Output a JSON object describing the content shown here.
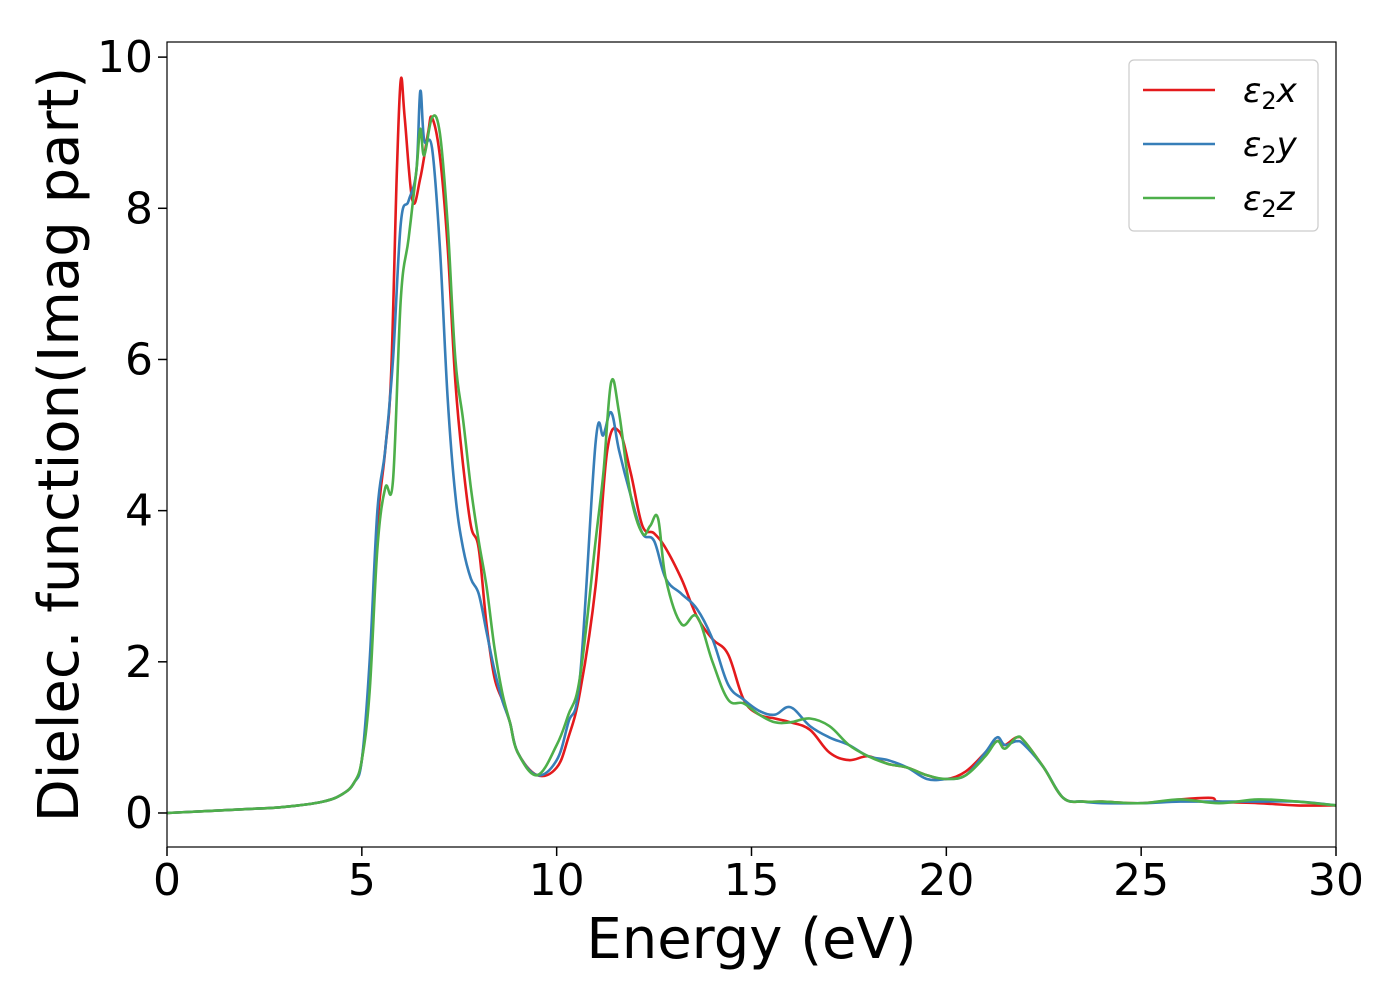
{
  "chart_data": {
    "type": "line",
    "title": "",
    "xlabel": "Energy (eV)",
    "ylabel": "Dielec. function(Imag part)",
    "xlim": [
      0,
      30
    ],
    "ylim": [
      -0.45,
      10.2
    ],
    "xticks": [
      0,
      5,
      10,
      15,
      20,
      25,
      30
    ],
    "yticks": [
      0,
      2,
      4,
      6,
      8,
      10
    ],
    "grid": false,
    "legend": "top-right",
    "series": [
      {
        "name": "ε₂x",
        "label_base": "ε",
        "label_sub": "2",
        "label_axis": "x",
        "color": "#e41a1c",
        "x": [
          0,
          2,
          3,
          4,
          4.5,
          4.8,
          5.0,
          5.2,
          5.4,
          5.6,
          5.75,
          5.9,
          6.0,
          6.1,
          6.3,
          6.5,
          6.7,
          6.8,
          7.0,
          7.2,
          7.4,
          7.6,
          7.8,
          8.0,
          8.2,
          8.4,
          8.6,
          8.8,
          9.0,
          9.5,
          10.0,
          10.3,
          10.6,
          11.0,
          11.3,
          11.6,
          11.9,
          12.2,
          12.5,
          12.8,
          13.2,
          13.6,
          14.0,
          14.4,
          14.8,
          15.2,
          15.6,
          16.0,
          16.5,
          17.0,
          17.5,
          18.0,
          18.5,
          19.0,
          19.5,
          20.0,
          20.5,
          21.0,
          21.3,
          21.5,
          21.8,
          22.0,
          22.5,
          23.0,
          23.5,
          24.0,
          25.0,
          26.0,
          26.8,
          27.0,
          28.0,
          29.0,
          30.0
        ],
        "y": [
          0,
          0.05,
          0.08,
          0.15,
          0.25,
          0.4,
          0.7,
          1.8,
          3.8,
          4.8,
          5.8,
          8.5,
          9.7,
          9.2,
          8.1,
          8.4,
          9.0,
          9.2,
          8.7,
          7.5,
          5.7,
          4.6,
          3.8,
          3.5,
          2.5,
          1.8,
          1.5,
          1.2,
          0.8,
          0.5,
          0.6,
          1.0,
          1.6,
          3.0,
          4.8,
          5.05,
          4.5,
          3.8,
          3.7,
          3.5,
          3.1,
          2.6,
          2.3,
          2.1,
          1.5,
          1.3,
          1.25,
          1.2,
          1.1,
          0.8,
          0.7,
          0.75,
          0.65,
          0.6,
          0.5,
          0.45,
          0.55,
          0.8,
          0.95,
          0.9,
          1.0,
          0.95,
          0.6,
          0.2,
          0.15,
          0.15,
          0.13,
          0.18,
          0.2,
          0.15,
          0.13,
          0.1,
          0.1
        ]
      },
      {
        "name": "ε₂y",
        "label_base": "ε",
        "label_sub": "2",
        "label_axis": "y",
        "color": "#377eb8",
        "x": [
          0,
          2,
          3,
          4,
          4.5,
          4.8,
          5.0,
          5.2,
          5.4,
          5.6,
          5.8,
          6.0,
          6.2,
          6.4,
          6.5,
          6.6,
          6.8,
          7.0,
          7.2,
          7.4,
          7.6,
          7.8,
          8.0,
          8.2,
          8.4,
          8.6,
          8.8,
          9.0,
          9.5,
          10.0,
          10.3,
          10.6,
          11.0,
          11.2,
          11.4,
          11.6,
          11.9,
          12.2,
          12.5,
          12.8,
          13.2,
          13.6,
          14.0,
          14.4,
          14.8,
          15.2,
          15.6,
          16.0,
          16.5,
          17.0,
          17.5,
          18.0,
          18.5,
          19.0,
          19.5,
          20.0,
          20.5,
          21.0,
          21.3,
          21.5,
          21.8,
          22.0,
          22.5,
          23.0,
          23.5,
          24.0,
          25.0,
          26.0,
          27.0,
          28.0,
          29.0,
          30.0
        ],
        "y": [
          0,
          0.05,
          0.08,
          0.15,
          0.25,
          0.4,
          0.7,
          2.0,
          4.0,
          4.8,
          6.0,
          7.8,
          8.1,
          8.5,
          9.55,
          8.9,
          8.8,
          7.5,
          5.5,
          4.2,
          3.5,
          3.1,
          2.9,
          2.4,
          1.9,
          1.5,
          1.2,
          0.8,
          0.5,
          0.7,
          1.2,
          1.8,
          4.9,
          5.0,
          5.3,
          4.8,
          4.2,
          3.7,
          3.6,
          3.1,
          2.9,
          2.7,
          2.3,
          1.7,
          1.5,
          1.35,
          1.3,
          1.4,
          1.15,
          1.0,
          0.9,
          0.75,
          0.7,
          0.6,
          0.45,
          0.45,
          0.5,
          0.8,
          1.0,
          0.9,
          0.95,
          0.9,
          0.6,
          0.2,
          0.15,
          0.13,
          0.13,
          0.15,
          0.15,
          0.15,
          0.15,
          0.1
        ]
      },
      {
        "name": "ε₂z",
        "label_base": "ε",
        "label_sub": "2",
        "label_axis": "z",
        "color": "#4daf4a",
        "x": [
          0,
          2,
          3,
          4,
          4.5,
          4.8,
          5.0,
          5.2,
          5.4,
          5.6,
          5.8,
          6.0,
          6.2,
          6.4,
          6.5,
          6.6,
          6.8,
          7.0,
          7.2,
          7.4,
          7.6,
          7.8,
          8.0,
          8.2,
          8.4,
          8.6,
          8.8,
          9.0,
          9.5,
          10.0,
          10.3,
          10.6,
          11.0,
          11.2,
          11.4,
          11.6,
          11.9,
          12.2,
          12.4,
          12.6,
          12.8,
          13.2,
          13.6,
          14.0,
          14.4,
          14.8,
          15.2,
          15.6,
          16.0,
          16.5,
          17.0,
          17.5,
          18.0,
          18.5,
          19.0,
          19.5,
          20.0,
          20.5,
          21.0,
          21.3,
          21.5,
          21.8,
          22.0,
          22.5,
          23.0,
          23.5,
          24.0,
          25.0,
          26.0,
          27.0,
          28.0,
          29.0,
          30.0
        ],
        "y": [
          0,
          0.05,
          0.08,
          0.15,
          0.25,
          0.4,
          0.7,
          1.6,
          3.5,
          4.3,
          4.4,
          6.8,
          7.6,
          8.5,
          9.05,
          8.7,
          9.2,
          9.0,
          7.8,
          6.0,
          5.2,
          4.3,
          3.6,
          3.0,
          2.2,
          1.6,
          1.2,
          0.8,
          0.5,
          0.9,
          1.3,
          1.8,
          3.6,
          4.5,
          5.7,
          5.3,
          4.2,
          3.7,
          3.8,
          3.9,
          3.1,
          2.5,
          2.6,
          2.0,
          1.5,
          1.45,
          1.3,
          1.2,
          1.2,
          1.25,
          1.15,
          0.9,
          0.75,
          0.65,
          0.6,
          0.5,
          0.45,
          0.5,
          0.75,
          0.95,
          0.85,
          1.0,
          0.95,
          0.6,
          0.2,
          0.15,
          0.15,
          0.13,
          0.18,
          0.13,
          0.18,
          0.15,
          0.1
        ]
      }
    ]
  }
}
